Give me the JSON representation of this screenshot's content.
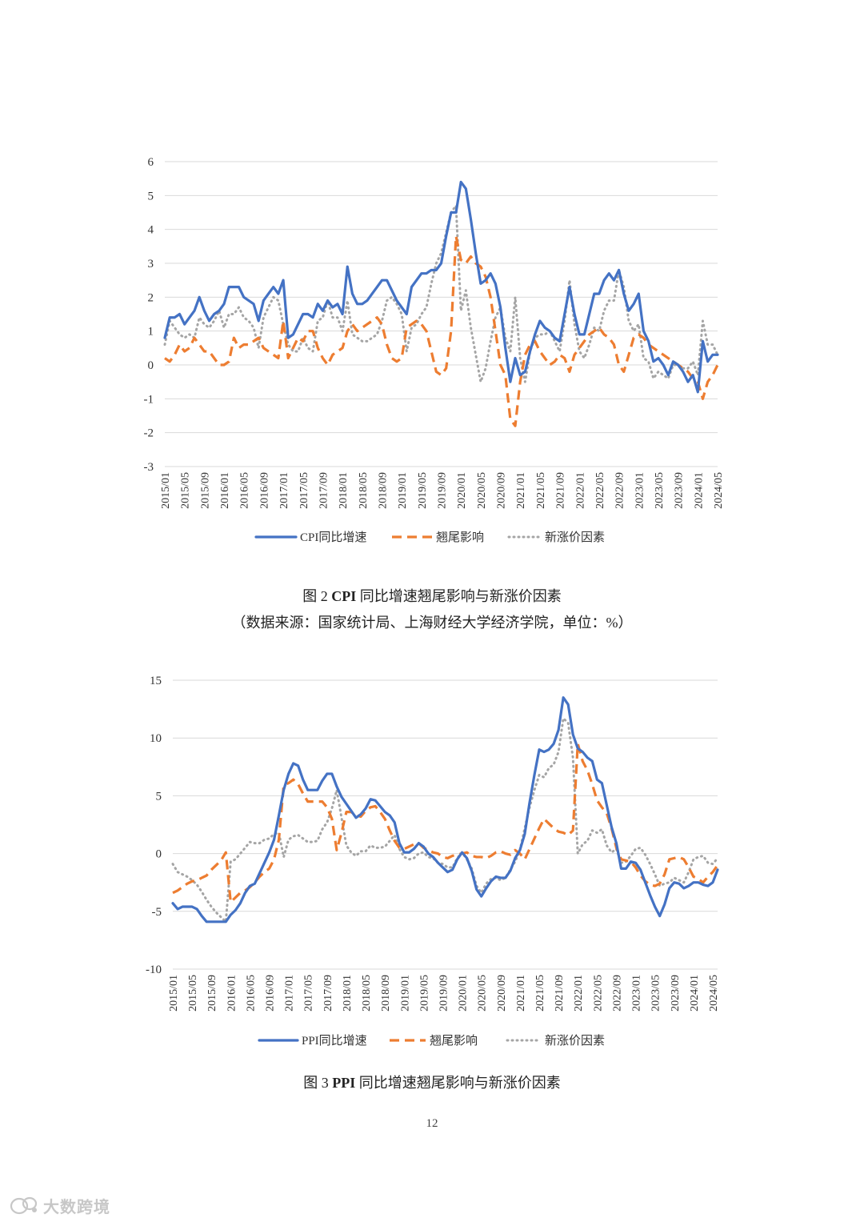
{
  "charts": [
    {
      "type": "line",
      "yticks": [
        6,
        5,
        4,
        3,
        2,
        1,
        0,
        -1,
        -2,
        -3
      ],
      "ylim": [
        -3,
        6
      ],
      "x_labels": [
        "2015/01",
        "2015/05",
        "2015/09",
        "2016/01",
        "2016/05",
        "2016/09",
        "2017/01",
        "2017/05",
        "2017/09",
        "2018/01",
        "2018/05",
        "2018/09",
        "2019/01",
        "2019/05",
        "2019/09",
        "2020/01",
        "2020/05",
        "2020/09",
        "2021/01",
        "2021/05",
        "2021/09",
        "2022/01",
        "2022/05",
        "2022/09",
        "2023/01",
        "2023/05",
        "2023/09",
        "2024/01",
        "2024/05"
      ],
      "grid": true,
      "legend_position": "bottom",
      "series": [
        {
          "name": "CPI同比增速",
          "color": "#4472c4",
          "style": "solid",
          "values": [
            0.8,
            1.4,
            1.4,
            1.5,
            1.2,
            1.4,
            1.6,
            2.0,
            1.6,
            1.3,
            1.5,
            1.6,
            1.8,
            2.3,
            2.3,
            2.3,
            2.0,
            1.9,
            1.8,
            1.3,
            1.9,
            2.1,
            2.3,
            2.1,
            2.5,
            0.8,
            0.9,
            1.2,
            1.5,
            1.5,
            1.4,
            1.8,
            1.6,
            1.9,
            1.7,
            1.8,
            1.5,
            2.9,
            2.1,
            1.8,
            1.8,
            1.9,
            2.1,
            2.3,
            2.5,
            2.5,
            2.2,
            1.9,
            1.7,
            1.5,
            2.3,
            2.5,
            2.7,
            2.7,
            2.8,
            2.8,
            3.0,
            3.8,
            4.5,
            4.5,
            5.4,
            5.2,
            4.3,
            3.3,
            2.4,
            2.5,
            2.7,
            2.4,
            1.7,
            0.5,
            -0.5,
            0.2,
            -0.3,
            -0.2,
            0.4,
            0.9,
            1.3,
            1.1,
            1.0,
            0.8,
            0.7,
            1.5,
            2.3,
            1.5,
            0.9,
            0.9,
            1.5,
            2.1,
            2.1,
            2.5,
            2.7,
            2.5,
            2.8,
            2.1,
            1.6,
            1.8,
            2.1,
            1.0,
            0.7,
            0.1,
            0.2,
            0.0,
            -0.3,
            0.1,
            0.0,
            -0.2,
            -0.5,
            -0.3,
            -0.8,
            0.7,
            0.1,
            0.3,
            0.3
          ]
        },
        {
          "name": "翘尾影响",
          "color": "#ed7d31",
          "style": "dashed",
          "values": [
            0.2,
            0.1,
            0.3,
            0.6,
            0.4,
            0.5,
            0.8,
            0.6,
            0.4,
            0.4,
            0.2,
            0.0,
            0.0,
            0.1,
            0.8,
            0.5,
            0.6,
            0.6,
            0.7,
            0.8,
            0.5,
            0.4,
            0.3,
            0.2,
            1.3,
            0.2,
            0.5,
            0.8,
            0.7,
            1.0,
            1.0,
            0.5,
            0.2,
            0.0,
            0.3,
            0.4,
            0.5,
            1.0,
            1.2,
            1.0,
            1.1,
            1.2,
            1.3,
            1.4,
            1.2,
            0.6,
            0.2,
            0.1,
            0.2,
            1.1,
            1.2,
            1.3,
            1.2,
            1.0,
            0.4,
            -0.2,
            -0.3,
            -0.1,
            1.0,
            3.8,
            3.1,
            3.0,
            3.2,
            3.0,
            2.9,
            2.6,
            2.0,
            1.0,
            0.0,
            -0.3,
            -1.6,
            -1.8,
            -0.5,
            0.3,
            0.6,
            0.7,
            0.4,
            0.2,
            0.0,
            0.1,
            0.3,
            0.2,
            -0.2,
            0.3,
            0.5,
            0.7,
            0.9,
            1.0,
            1.1,
            0.9,
            0.8,
            0.6,
            0.0,
            -0.2,
            0.3,
            0.8,
            0.9,
            0.8,
            0.6,
            0.5,
            0.4,
            0.3,
            0.2,
            0.1,
            0.0,
            -0.1,
            -0.2,
            -0.4,
            -0.5,
            -1.0,
            -0.5,
            -0.3,
            0.0
          ]
        },
        {
          "name": "新涨价因素",
          "color": "#a5a5a5",
          "style": "dotted",
          "values": [
            0.6,
            1.3,
            1.1,
            0.9,
            0.8,
            0.9,
            0.8,
            1.4,
            1.2,
            1.1,
            1.3,
            1.6,
            1.1,
            1.5,
            1.5,
            1.7,
            1.4,
            1.3,
            1.1,
            0.5,
            1.4,
            1.7,
            2.0,
            1.9,
            1.2,
            0.6,
            0.4,
            0.4,
            0.8,
            0.5,
            0.4,
            1.3,
            1.4,
            1.9,
            1.4,
            1.4,
            1.0,
            1.9,
            0.9,
            0.8,
            0.7,
            0.7,
            0.8,
            0.9,
            1.3,
            1.9,
            2.0,
            1.8,
            1.5,
            0.4,
            1.1,
            1.2,
            1.5,
            1.7,
            2.4,
            3.0,
            3.3,
            3.9,
            4.5,
            4.7,
            1.6,
            2.2,
            1.1,
            0.3,
            -0.5,
            -0.1,
            0.7,
            1.4,
            1.7,
            0.8,
            0.4,
            2.0,
            0.2,
            -0.5,
            0.4,
            0.8,
            0.9,
            0.9,
            1.0,
            0.7,
            0.4,
            1.3,
            2.5,
            1.2,
            0.4,
            0.2,
            0.6,
            1.1,
            1.0,
            1.6,
            1.9,
            1.9,
            2.8,
            2.3,
            1.3,
            1.0,
            1.2,
            0.2,
            0.1,
            -0.4,
            -0.2,
            -0.3,
            -0.4,
            0.0,
            0.0,
            -0.1,
            -0.1,
            0.1,
            -0.3,
            1.3,
            0.6,
            0.6,
            0.3
          ]
        }
      ]
    },
    {
      "type": "line",
      "yticks": [
        15,
        10,
        5,
        0,
        -5,
        -10
      ],
      "ylim": [
        -10,
        15
      ],
      "x_labels": [
        "2015/01",
        "2015/05",
        "2015/09",
        "2016/01",
        "2016/05",
        "2016/09",
        "2017/01",
        "2017/05",
        "2017/09",
        "2018/01",
        "2018/05",
        "2018/09",
        "2019/01",
        "2019/05",
        "2019/09",
        "2020/01",
        "2020/05",
        "2020/09",
        "2021/01",
        "2021/05",
        "2021/09",
        "2022/01",
        "2022/05",
        "2022/09",
        "2023/01",
        "2023/05",
        "2023/09",
        "2024/01",
        "2024/05"
      ],
      "grid": true,
      "legend_position": "bottom",
      "series": [
        {
          "name": "PPI同比增速",
          "color": "#4472c4",
          "style": "solid",
          "values": [
            -4.3,
            -4.8,
            -4.6,
            -4.6,
            -4.6,
            -4.8,
            -5.4,
            -5.9,
            -5.9,
            -5.9,
            -5.9,
            -5.9,
            -5.3,
            -4.9,
            -4.3,
            -3.4,
            -2.8,
            -2.6,
            -1.7,
            -0.8,
            0.1,
            1.2,
            3.3,
            5.5,
            6.9,
            7.8,
            7.6,
            6.4,
            5.5,
            5.5,
            5.5,
            6.3,
            6.9,
            6.9,
            5.8,
            4.9,
            4.3,
            3.7,
            3.1,
            3.4,
            3.9,
            4.7,
            4.6,
            4.1,
            3.6,
            3.3,
            2.7,
            0.9,
            0.1,
            0.1,
            0.4,
            0.9,
            0.6,
            0.0,
            -0.3,
            -0.8,
            -1.2,
            -1.6,
            -1.4,
            -0.5,
            0.1,
            -0.4,
            -1.5,
            -3.1,
            -3.7,
            -3.0,
            -2.4,
            -2.0,
            -2.1,
            -2.1,
            -1.5,
            -0.4,
            0.3,
            1.7,
            4.4,
            6.8,
            9.0,
            8.8,
            9.0,
            9.5,
            10.7,
            13.5,
            12.9,
            10.3,
            9.1,
            8.8,
            8.3,
            8.0,
            6.4,
            6.1,
            4.2,
            2.3,
            0.9,
            -1.3,
            -1.3,
            -0.7,
            -0.8,
            -1.4,
            -2.5,
            -3.6,
            -4.6,
            -5.4,
            -4.4,
            -3.0,
            -2.5,
            -2.6,
            -3.0,
            -2.8,
            -2.5,
            -2.5,
            -2.7,
            -2.8,
            -2.5,
            -1.4
          ]
        },
        {
          "name": "翘尾影响",
          "color": "#ed7d31",
          "style": "dashed",
          "values": [
            -3.4,
            -3.2,
            -2.9,
            -2.6,
            -2.4,
            -2.3,
            -2.1,
            -1.9,
            -1.4,
            -1.0,
            -0.6,
            0.1,
            -4.2,
            -3.8,
            -3.4,
            -3.2,
            -2.9,
            -2.5,
            -2.0,
            -1.6,
            -1.3,
            -0.5,
            1.2,
            5.9,
            6.1,
            6.4,
            6.0,
            5.2,
            4.5,
            4.5,
            4.5,
            4.5,
            4.0,
            3.0,
            0.3,
            1.8,
            3.6,
            3.6,
            3.3,
            3.2,
            3.7,
            4.0,
            4.1,
            3.6,
            3.0,
            2.0,
            1.1,
            0.5,
            0.4,
            0.6,
            0.8,
            0.9,
            0.5,
            0.3,
            0.1,
            0.0,
            -0.3,
            -0.4,
            -0.2,
            -0.1,
            0.0,
            0.1,
            -0.2,
            -0.3,
            -0.3,
            -0.4,
            -0.2,
            0.1,
            0.2,
            0.0,
            -0.1,
            0.3,
            0.0,
            -0.5,
            0.4,
            1.3,
            2.2,
            3.0,
            2.6,
            2.2,
            1.9,
            1.8,
            1.6,
            2.0,
            9.5,
            8.0,
            7.2,
            6.0,
            4.6,
            4.0,
            3.5,
            2.2,
            0.5,
            -0.5,
            -0.6,
            -0.7,
            -1.2,
            -1.9,
            -2.4,
            -2.7,
            -2.8,
            -2.6,
            -1.8,
            -0.5,
            -0.4,
            -0.3,
            -0.5,
            -1.2,
            -2.0,
            -2.2,
            -2.5,
            -2.0,
            -1.6,
            -1.0
          ]
        },
        {
          "name": "新涨价因素",
          "color": "#a5a5a5",
          "style": "dotted",
          "values": [
            -0.9,
            -1.6,
            -1.8,
            -2.0,
            -2.3,
            -2.7,
            -3.3,
            -4.0,
            -4.6,
            -5.1,
            -5.5,
            -5.9,
            -0.7,
            -0.5,
            0.0,
            0.5,
            1.0,
            0.9,
            0.9,
            1.2,
            1.3,
            1.7,
            1.8,
            -0.3,
            1.2,
            1.5,
            1.6,
            1.3,
            1.0,
            1.0,
            1.1,
            2.1,
            2.7,
            3.9,
            5.5,
            3.1,
            0.7,
            0.1,
            -0.2,
            0.2,
            0.2,
            0.7,
            0.5,
            0.5,
            0.6,
            1.1,
            1.6,
            0.4,
            -0.3,
            -0.5,
            -0.4,
            0.0,
            0.1,
            -0.3,
            -0.4,
            -0.8,
            -0.9,
            -1.2,
            -1.2,
            -0.4,
            0.1,
            -0.5,
            -1.3,
            -2.8,
            -3.4,
            -2.6,
            -2.2,
            -2.1,
            -2.3,
            -2.1,
            -1.4,
            -0.7,
            0.3,
            2.2,
            4.0,
            5.5,
            6.8,
            6.6,
            7.4,
            7.7,
            8.8,
            11.7,
            11.3,
            8.3,
            0.0,
            0.8,
            1.1,
            2.0,
            1.8,
            2.1,
            0.7,
            0.1,
            0.4,
            -0.8,
            -0.7,
            -0.2,
            0.4,
            0.5,
            -0.1,
            -0.9,
            -1.8,
            -2.8,
            -2.6,
            -2.5,
            -2.1,
            -2.3,
            -2.5,
            -1.6,
            -0.5,
            -0.3,
            -0.2,
            -0.8,
            -0.9,
            -0.4
          ]
        }
      ]
    }
  ],
  "captions": {
    "fig2_prefix": "图 2 ",
    "fig2_bold": "CPI",
    "fig2_rest": " 同比增速翘尾影响与新涨价因素",
    "fig2_source": "（数据来源：国家统计局、上海财经大学经济学院，单位：%）",
    "fig3_prefix": "图 3 ",
    "fig3_bold": "PPI",
    "fig3_rest": " 同比增速翘尾影响与新涨价因素"
  },
  "page_number": "12",
  "watermark": {
    "text": "大数跨境"
  }
}
